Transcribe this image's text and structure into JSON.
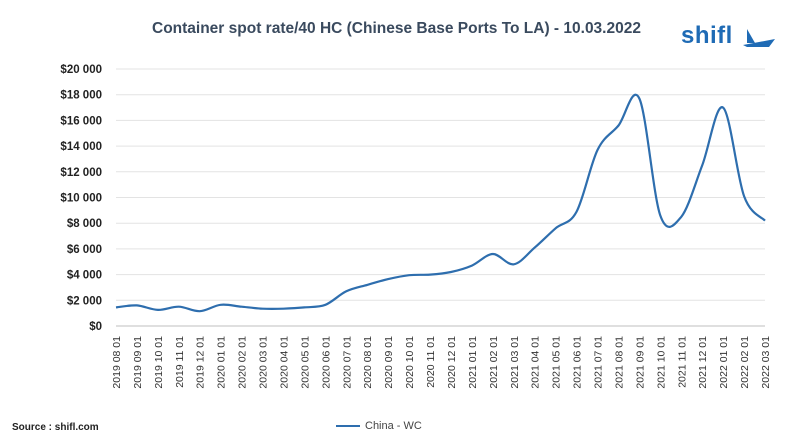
{
  "brand": {
    "logo_text": "shifl"
  },
  "source": "Source : shifl.com",
  "chart_data": {
    "type": "line",
    "title": "Container spot rate/40 HC (Chinese Base Ports To LA) - 10.03.2022",
    "xlabel": "",
    "ylabel": "",
    "ylim": [
      0,
      20000
    ],
    "grid": true,
    "legend_position": "bottom",
    "y_tick_labels": [
      "$0",
      "$2 000",
      "$4 000",
      "$6 000",
      "$8 000",
      "$10 000",
      "$12 000",
      "$14 000",
      "$16 000",
      "$18 000",
      "$20 000"
    ],
    "categories": [
      "2019 08 01",
      "2019 09 01",
      "2019 10 01",
      "2019 11 01",
      "2019 12 01",
      "2020 01 01",
      "2020 02 01",
      "2020 03 01",
      "2020 04 01",
      "2020 05 01",
      "2020 06 01",
      "2020 07 01",
      "2020 08 01",
      "2020 09 01",
      "2020 10 01",
      "2020 11 01",
      "2020 12 01",
      "2021 01 01",
      "2021 02 01",
      "2021 03 01",
      "2021 04 01",
      "2021 05 01",
      "2021 06 01",
      "2021 07 01",
      "2021 08 01",
      "2021 09 01",
      "2021 10 01",
      "2021 11 01",
      "2021 12 01",
      "2022 01 01",
      "2022 02 01",
      "2022 03 01"
    ],
    "series": [
      {
        "name": "China - WC",
        "color": "#2e6eae",
        "values": [
          1450,
          1600,
          1250,
          1500,
          1150,
          1650,
          1500,
          1350,
          1350,
          1450,
          1650,
          2700,
          3200,
          3650,
          3950,
          4000,
          4200,
          4700,
          5600,
          4800,
          6100,
          7600,
          8900,
          13700,
          15600,
          17700,
          8600,
          8500,
          12500,
          17000,
          10100,
          8200
        ]
      }
    ]
  }
}
